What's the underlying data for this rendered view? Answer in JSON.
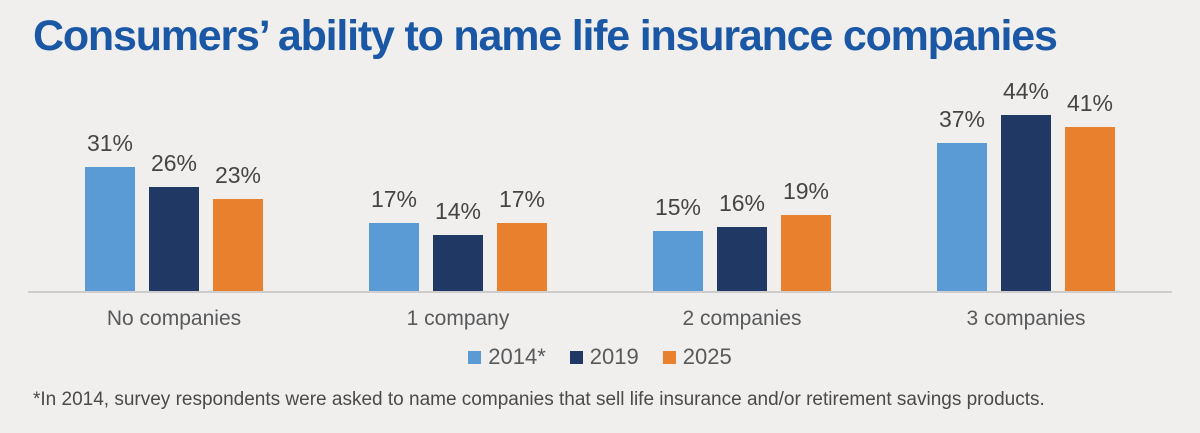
{
  "page": {
    "background_color": "#f0efed"
  },
  "chart_data": {
    "type": "bar",
    "title": "Consumers’ ability to name life insurance companies",
    "title_color": "#1a57a5",
    "categories": [
      "No companies",
      "1 company",
      "2 companies",
      "3 companies"
    ],
    "series": [
      {
        "name": "2014*",
        "color": "#5b9bd5",
        "values": [
          31,
          17,
          15,
          37
        ]
      },
      {
        "name": "2019",
        "color": "#1f3864",
        "values": [
          26,
          14,
          16,
          44
        ]
      },
      {
        "name": "2025",
        "color": "#e8802d",
        "values": [
          23,
          17,
          19,
          41
        ]
      }
    ],
    "value_suffix": "%",
    "xlabel": "",
    "ylabel": "",
    "ylim": [
      0,
      50
    ],
    "grid": false,
    "legend_position": "bottom",
    "axis_line_color": "#cdcdcd",
    "value_label_color": "#454545",
    "category_label_color": "#58595b"
  },
  "footnote": {
    "text": "*In 2014, survey respondents were asked to name companies that sell life insurance and/or retirement savings products."
  }
}
